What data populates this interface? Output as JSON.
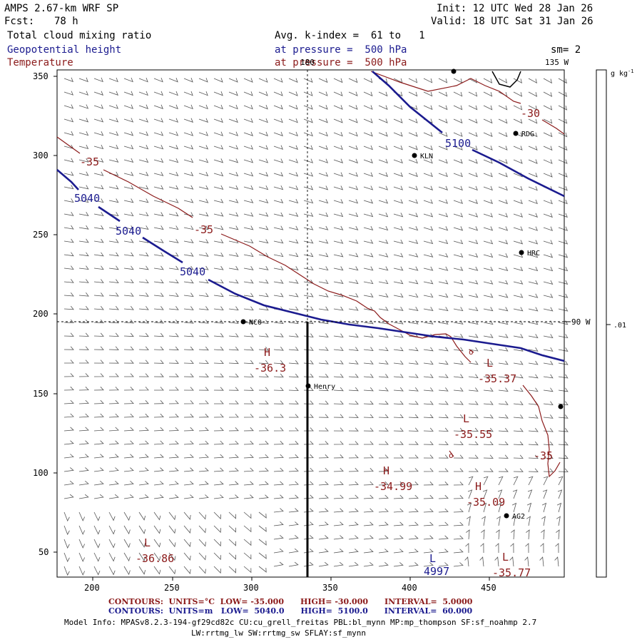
{
  "header": {
    "model": "AMPS 2.67-km WRF SP",
    "fcst_label": "Fcst:",
    "fcst_value": "78 h",
    "init": "Init: 12 UTC Wed 28 Jan 26",
    "valid": "Valid: 18 UTC Sat 31 Jan 26",
    "field1": "Total cloud mixing ratio",
    "field2": "Geopotential height",
    "field3": "Temperature",
    "avg": "Avg. k-index =  61 to   1",
    "pressure1": "at pressure =  500 hPa",
    "pressure2": "at pressure =  500 hPa",
    "sm": "sm= 2"
  },
  "map": {
    "lon_top_center": "180",
    "lon_top_right": "135 W",
    "lon_right": "90 W",
    "x_ticks": [
      "200",
      "250",
      "300",
      "350",
      "400",
      "450"
    ],
    "y_ticks": [
      "50",
      "100",
      "150",
      "200",
      "250",
      "300",
      "350"
    ],
    "stations": [
      {
        "name": "RDG"
      },
      {
        "name": "KLN"
      },
      {
        "name": "HRC"
      },
      {
        "name": "NCO"
      },
      {
        "name": "Henry"
      },
      {
        "name": "AG2"
      }
    ],
    "height_labels": [
      "5100",
      "5040",
      "5040",
      "5040",
      "4997"
    ],
    "temp_labels": [
      "-30",
      "-35",
      "-35",
      "-35"
    ],
    "extrema": [
      {
        "kind": "H",
        "value": "-36.3"
      },
      {
        "kind": "L",
        "value": "-35.37"
      },
      {
        "kind": "L",
        "value": "-35.55"
      },
      {
        "kind": "H",
        "value": "-34.99"
      },
      {
        "kind": "H",
        "value": "-35.09"
      },
      {
        "kind": "L",
        "value": "-36.86"
      },
      {
        "kind": "L",
        "value": "-35.77"
      }
    ],
    "bottom_L": "L"
  },
  "colorbar": {
    "unit": "g kg",
    "unit_exp": "-1",
    "tick": ".01"
  },
  "footer": {
    "line1": "CONTOURS:  UNITS=°C  LOW= -35.000      HIGH= -30.000      INTERVAL=  5.0000",
    "line2": "CONTOURS:  UNITS=m   LOW=  5040.0      HIGH=  5100.0      INTERVAL=  60.000",
    "info1": "Model Info: MPASv8.2.3-194-gf29cd82c CU:cu_grell_freitas PBL:bl_mynn MP:mp_thompson SF:sf_noahmp 2.7",
    "info2": "LW:rrtmg_lw SW:rrtmg_sw SFLAY:sf_mynn"
  },
  "colors": {
    "height": "#1b1b8f",
    "temperature": "#8b1a1a",
    "wind": "#555555"
  }
}
